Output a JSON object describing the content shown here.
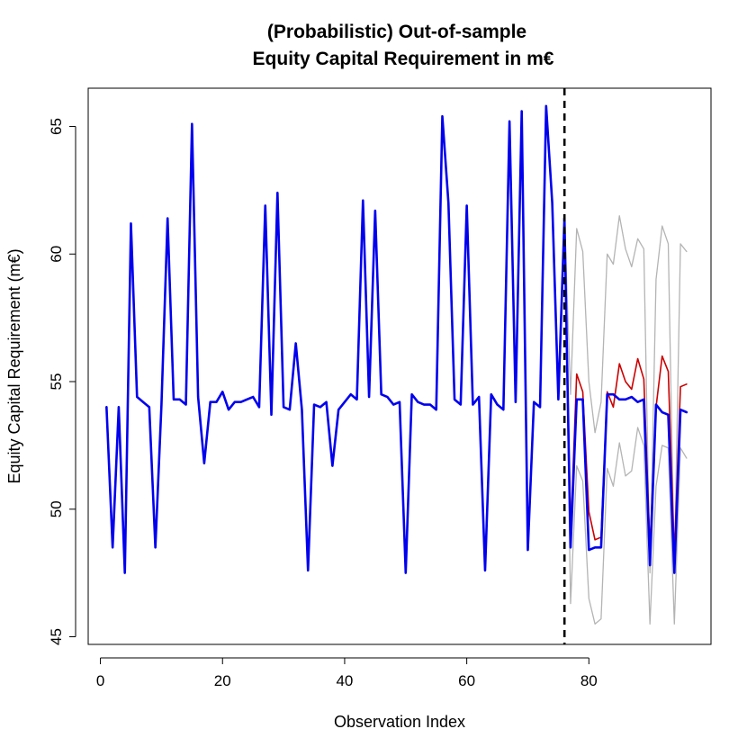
{
  "chart_data": {
    "type": "line",
    "title_line1": "(Probabilistic) Out-of-sample",
    "title_line2": "Equity Capital Requirement in m€",
    "xlabel": "Observation Index",
    "ylabel": "Equity Capital Requirement (m€)",
    "xlim": [
      -2,
      100
    ],
    "ylim": [
      44.7,
      66.5
    ],
    "x_ticks": [
      0,
      20,
      40,
      60,
      80
    ],
    "y_ticks": [
      45,
      50,
      55,
      60,
      65
    ],
    "grid": false,
    "legend": "none",
    "vline": {
      "x": 76,
      "style": "dashed",
      "color": "#000000"
    },
    "series": [
      {
        "role": "observed",
        "color": "#0000ee",
        "x": [
          1,
          2,
          3,
          4,
          5,
          6,
          7,
          8,
          9,
          10,
          11,
          12,
          13,
          14,
          15,
          16,
          17,
          18,
          19,
          20,
          21,
          22,
          23,
          24,
          25,
          26,
          27,
          28,
          29,
          30,
          31,
          32,
          33,
          34,
          35,
          36,
          37,
          38,
          39,
          40,
          41,
          42,
          43,
          44,
          45,
          46,
          47,
          48,
          49,
          50,
          51,
          52,
          53,
          54,
          55,
          56,
          57,
          58,
          59,
          60,
          61,
          62,
          63,
          64,
          65,
          66,
          67,
          68,
          69,
          70,
          71,
          72,
          73,
          74,
          75,
          76
        ],
        "values": [
          54.0,
          48.5,
          54.0,
          47.5,
          61.2,
          54.4,
          54.2,
          54.0,
          48.5,
          54.1,
          61.4,
          54.3,
          54.3,
          54.1,
          65.1,
          54.4,
          51.8,
          54.2,
          54.2,
          54.6,
          53.9,
          54.2,
          54.2,
          54.3,
          54.4,
          54.0,
          61.9,
          53.7,
          62.4,
          54.0,
          53.9,
          56.5,
          53.9,
          47.6,
          54.1,
          54.0,
          54.2,
          51.7,
          53.9,
          54.2,
          54.5,
          54.3,
          62.1,
          54.4,
          61.7,
          54.5,
          54.4,
          54.1,
          54.2,
          47.5,
          54.5,
          54.2,
          54.1,
          54.1,
          53.9,
          65.4,
          62.0,
          54.3,
          54.1,
          61.9,
          54.1,
          54.4,
          47.6,
          54.5,
          54.1,
          53.9,
          65.2,
          54.2,
          65.6,
          48.4,
          54.2,
          54.0,
          65.8,
          62.0,
          54.3,
          61.4
        ]
      },
      {
        "role": "forecast-upper",
        "color": "#b4b4b4",
        "x": [
          76,
          77,
          78,
          79,
          80,
          81,
          82,
          83,
          84,
          85,
          86,
          87,
          88,
          89,
          90,
          91,
          92,
          93,
          94,
          95,
          96
        ],
        "values": [
          61.4,
          54.5,
          61.0,
          60.1,
          55.0,
          53.0,
          54.2,
          60.0,
          59.6,
          61.5,
          60.2,
          59.5,
          60.6,
          60.2,
          47.5,
          59.0,
          61.1,
          60.4,
          47.5,
          60.4,
          60.1
        ]
      },
      {
        "role": "forecast-lower",
        "color": "#b4b4b4",
        "x": [
          76,
          77,
          78,
          79,
          80,
          81,
          82,
          83,
          84,
          85,
          86,
          87,
          88,
          89,
          90,
          91,
          92,
          93,
          94,
          95,
          96
        ],
        "values": [
          61.4,
          46.3,
          51.7,
          51.1,
          46.5,
          45.5,
          45.7,
          51.6,
          50.9,
          52.6,
          51.3,
          51.5,
          53.2,
          52.5,
          45.5,
          50.9,
          52.5,
          52.4,
          45.5,
          52.4,
          52.0
        ]
      },
      {
        "role": "forecast-median",
        "color": "#cc0000",
        "x": [
          76,
          77,
          78,
          79,
          80,
          81,
          82,
          83,
          84,
          85,
          86,
          87,
          88,
          89,
          90,
          91,
          92,
          93,
          94,
          95,
          96
        ],
        "values": [
          61.4,
          49.0,
          55.3,
          54.6,
          49.9,
          48.8,
          48.9,
          54.6,
          54.0,
          55.7,
          55.0,
          54.7,
          55.9,
          55.1,
          48.5,
          54.0,
          56.0,
          55.4,
          48.2,
          54.8,
          54.9
        ]
      },
      {
        "role": "out-of-sample-actual",
        "color": "#0000ee",
        "x": [
          76,
          77,
          78,
          79,
          80,
          81,
          82,
          83,
          84,
          85,
          86,
          87,
          88,
          89,
          90,
          91,
          92,
          93,
          94,
          95,
          96
        ],
        "values": [
          61.4,
          48.5,
          54.3,
          54.3,
          48.4,
          48.5,
          48.5,
          54.5,
          54.5,
          54.3,
          54.3,
          54.4,
          54.2,
          54.3,
          47.8,
          54.1,
          53.8,
          53.7,
          47.5,
          53.9,
          53.8
        ]
      }
    ]
  }
}
